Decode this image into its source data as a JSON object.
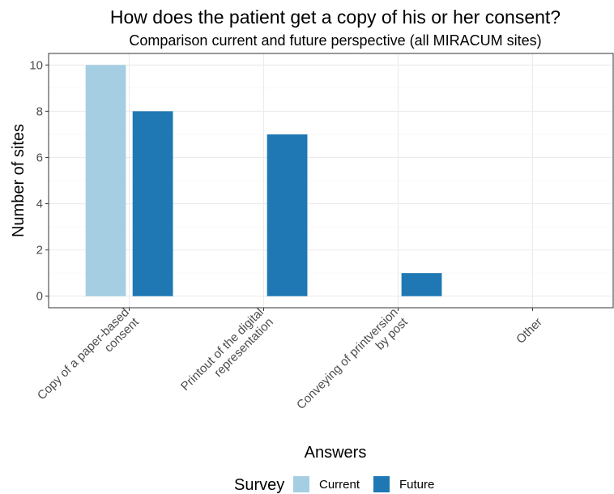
{
  "chart_data": {
    "type": "bar",
    "title": "How does the patient get a copy of his or her consent?",
    "subtitle": "Comparison current and future perspective (all MIRACUM sites)",
    "xlabel": "Answers",
    "ylabel": "Number of sites",
    "categories": [
      [
        "Copy of a paper-based",
        "consent"
      ],
      [
        "Printout of the digital",
        "representation"
      ],
      [
        "Conveying of printversion",
        "by post"
      ],
      [
        "Other"
      ]
    ],
    "series": [
      {
        "name": "Current",
        "color": "#a6cee3",
        "values": [
          10,
          0,
          0,
          0
        ]
      },
      {
        "name": "Future",
        "color": "#1f78b4",
        "values": [
          8,
          7,
          1,
          0
        ]
      }
    ],
    "ylim": [
      -0.5,
      10.5
    ],
    "yticks": [
      0,
      2,
      4,
      6,
      8,
      10
    ],
    "grid": true,
    "legend": {
      "title": "Survey",
      "position": "bottom"
    }
  }
}
